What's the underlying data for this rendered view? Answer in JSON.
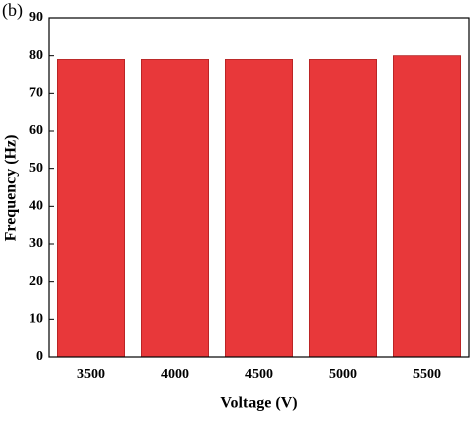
{
  "chart_data": {
    "type": "bar",
    "panel_label": "(b)",
    "xlabel": "Voltage (V)",
    "ylabel": "Frequency (Hz)",
    "categories": [
      "3500",
      "4000",
      "4500",
      "5000",
      "5500"
    ],
    "values": [
      79,
      79,
      79,
      79,
      80
    ],
    "color": "#e8383a",
    "ylim": [
      0,
      90
    ],
    "yticks": [
      0,
      10,
      20,
      30,
      40,
      50,
      60,
      70,
      80,
      90
    ],
    "grid": false
  }
}
